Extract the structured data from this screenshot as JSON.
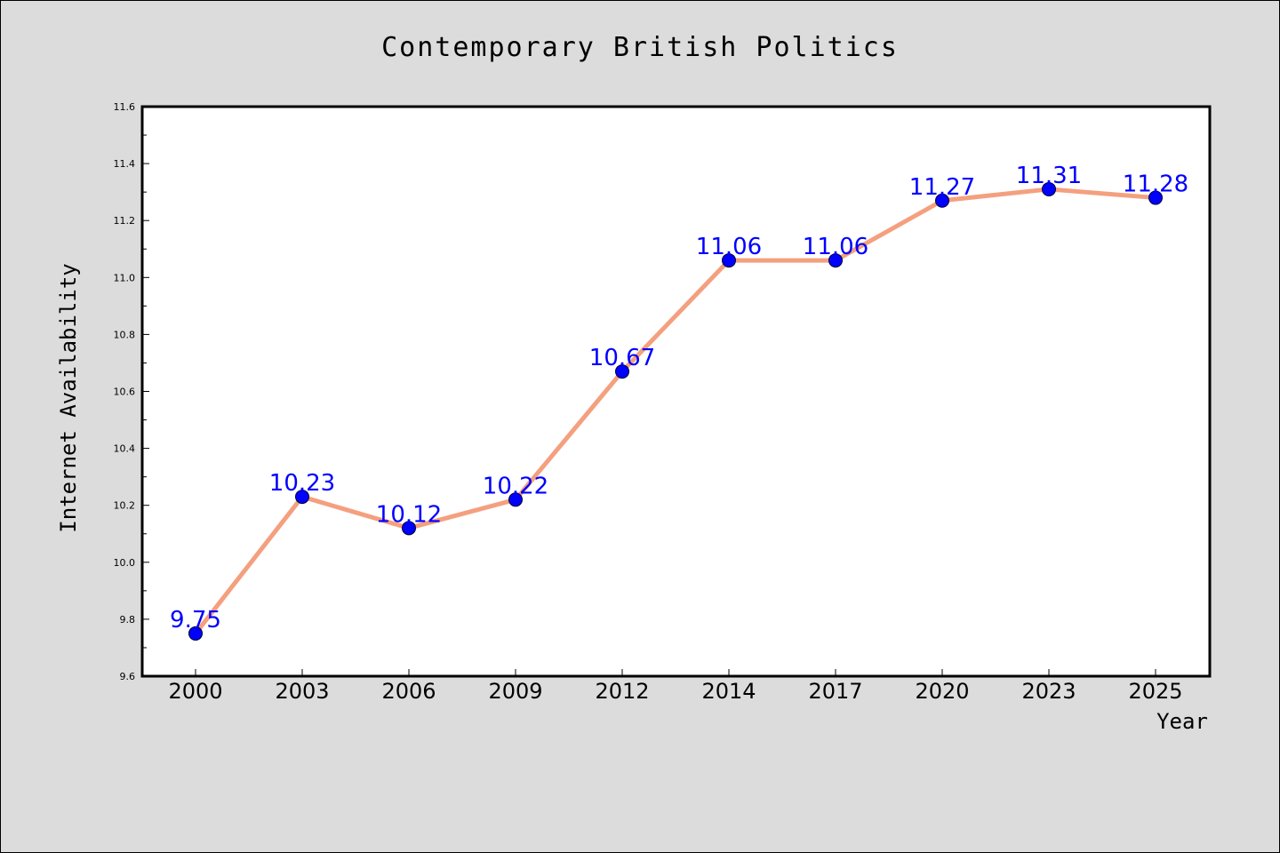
{
  "chart_data": {
    "type": "line",
    "title": "Contemporary British Politics",
    "xlabel": "Year",
    "ylabel": "Internet Availability",
    "categories": [
      "2000",
      "2003",
      "2006",
      "2009",
      "2012",
      "2014",
      "2017",
      "2020",
      "2023",
      "2025"
    ],
    "series": [
      {
        "values": [
          9.75,
          10.23,
          10.12,
          10.22,
          10.67,
          11.06,
          11.06,
          11.27,
          11.31,
          11.28
        ],
        "data_labels": [
          "9.75",
          "10.23",
          "10.12",
          "10.22",
          "10.67",
          "11.06",
          "11.06",
          "11.27",
          "11.31",
          "11.28"
        ]
      }
    ],
    "ylim": [
      9.6,
      11.6
    ],
    "yticks": [
      "9.6",
      "9.8",
      "10.0",
      "10.2",
      "10.4",
      "10.6",
      "10.8",
      "11.0",
      "11.2",
      "11.4",
      "11.6"
    ],
    "grid": false,
    "legend": "none",
    "colors": {
      "line": "#f4a07f",
      "marker": "#0000ff",
      "label": "#0000ff",
      "plot_background": "#ffffff",
      "figure_background": "#dcdcdc"
    }
  }
}
